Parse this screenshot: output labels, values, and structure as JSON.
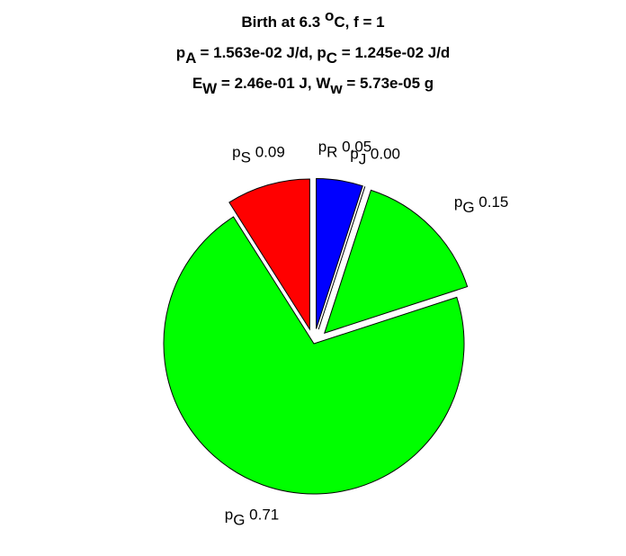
{
  "chart_data": {
    "type": "pie",
    "title": [
      [
        {
          "text": "Birth at 6.3 "
        },
        {
          "sup": "o"
        },
        {
          "text": "C, f = 1"
        }
      ],
      [
        {
          "text": "p"
        },
        {
          "sub": "A"
        },
        {
          "text": " = 1.563e-02 J/d, p"
        },
        {
          "sub": "C"
        },
        {
          "text": " = 1.245e-02 J/d"
        }
      ],
      [
        {
          "text": "E"
        },
        {
          "sub": "W"
        },
        {
          "text": " = 2.46e-01 J, W"
        },
        {
          "sub": "w"
        },
        {
          "text": " = 5.73e-05 g"
        }
      ]
    ],
    "label_base": [
      "p",
      "p",
      "p",
      "p",
      "p"
    ],
    "label_sub": [
      "R",
      "J",
      "G",
      "G",
      "S"
    ],
    "values": [
      0.05,
      0.0,
      0.15,
      0.71,
      0.09
    ],
    "value_labels": [
      "0.05",
      "0.00",
      "0.15",
      "0.71",
      "0.09"
    ],
    "colors": [
      "#0000ff",
      "#ffff00",
      "#00ff00",
      "#00ff00",
      "#ff0000"
    ],
    "explode": [
      true,
      true,
      true,
      false,
      true
    ]
  }
}
